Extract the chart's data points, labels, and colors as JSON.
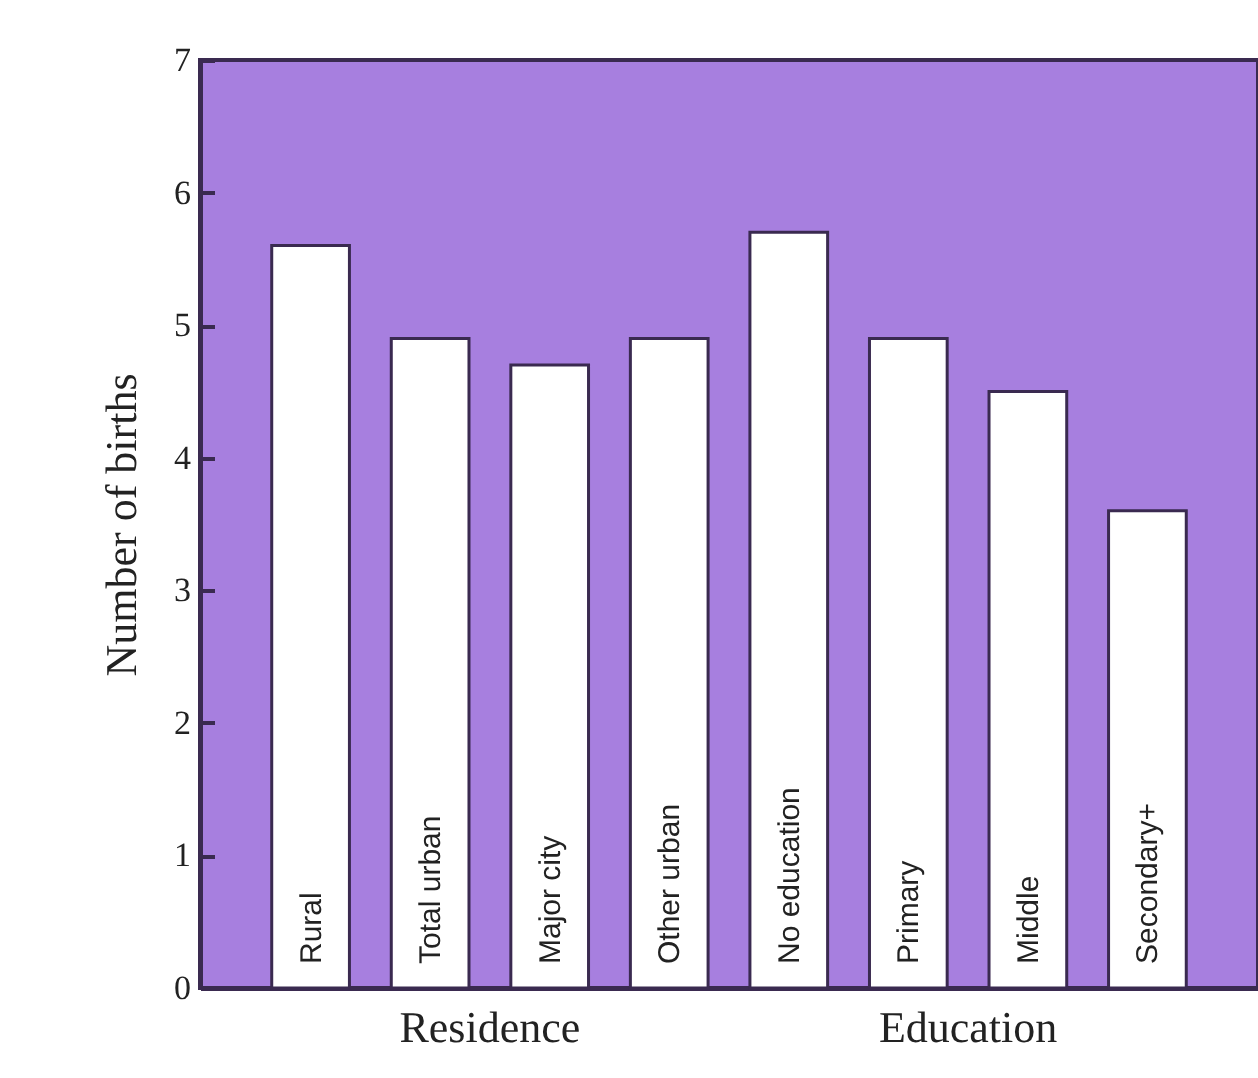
{
  "chart_data": {
    "type": "bar",
    "categories": [
      "Rural",
      "Total urban",
      "Major city",
      "Other urban",
      "No education",
      "Primary",
      "Middle",
      "Secondary+"
    ],
    "values": [
      5.6,
      4.9,
      4.7,
      4.9,
      5.7,
      4.9,
      4.5,
      3.6
    ],
    "color": "#ffffff",
    "ylabel": "Number of births",
    "ylim": [
      0,
      7
    ],
    "yticks": [
      0,
      1,
      2,
      3,
      4,
      5,
      6,
      7
    ],
    "annotations": [
      "Residence",
      "Education"
    ],
    "tick_labels": "y",
    "grid": false
  }
}
